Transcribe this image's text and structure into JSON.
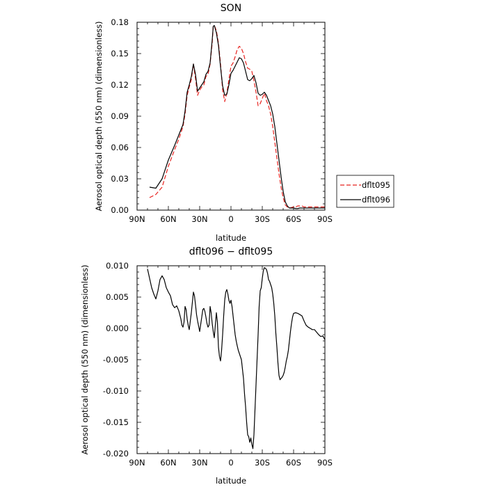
{
  "chart_data": [
    {
      "type": "line",
      "title": "SON",
      "xlabel": "latitude",
      "ylabel": "Aerosol optical depth (550 nm) (dimensionless)",
      "xlim": [
        90,
        -90
      ],
      "ylim": [
        0.0,
        0.18
      ],
      "x_ticks": [
        90,
        60,
        30,
        0,
        -30,
        -60,
        -90
      ],
      "x_tick_labels": [
        "90N",
        "60N",
        "30N",
        "0",
        "30S",
        "60S",
        "90S"
      ],
      "y_ticks": [
        0.0,
        0.03,
        0.06,
        0.09,
        0.12,
        0.15,
        0.18
      ],
      "y_tick_labels": [
        "0.00",
        "0.03",
        "0.06",
        "0.09",
        "0.12",
        "0.15",
        "0.18"
      ],
      "grid": false,
      "legend_position": "outside-right",
      "series": [
        {
          "name": "dflt095",
          "color": "#e8221e",
          "dash": "dashed",
          "x": [
            78,
            72,
            66,
            60,
            54,
            50,
            46,
            44,
            42,
            40,
            38,
            36,
            34,
            32,
            30,
            28,
            26,
            24,
            22,
            20,
            18,
            17,
            16,
            14,
            12,
            10,
            8,
            6,
            4,
            2,
            0,
            -2,
            -4,
            -6,
            -8,
            -10,
            -12,
            -14,
            -16,
            -18,
            -20,
            -22,
            -24,
            -26,
            -28,
            -30,
            -32,
            -34,
            -36,
            -38,
            -40,
            -42,
            -44,
            -46,
            -48,
            -50,
            -52,
            -54,
            -56,
            -58,
            -60,
            -62,
            -64,
            -66,
            -68,
            -70,
            -72,
            -74,
            -76,
            -78,
            -80,
            -82,
            -84,
            -86,
            -88,
            -90
          ],
          "y": [
            0.012,
            0.015,
            0.022,
            0.042,
            0.058,
            0.068,
            0.08,
            0.092,
            0.11,
            0.118,
            0.125,
            0.14,
            0.126,
            0.11,
            0.115,
            0.118,
            0.12,
            0.128,
            0.13,
            0.14,
            0.16,
            0.176,
            0.177,
            0.172,
            0.16,
            0.14,
            0.115,
            0.104,
            0.112,
            0.125,
            0.138,
            0.141,
            0.147,
            0.154,
            0.157,
            0.155,
            0.15,
            0.142,
            0.136,
            0.135,
            0.133,
            0.124,
            0.113,
            0.1,
            0.102,
            0.107,
            0.112,
            0.105,
            0.1,
            0.092,
            0.08,
            0.065,
            0.05,
            0.035,
            0.022,
            0.012,
            0.005,
            0.003,
            0.002,
            0.0025,
            0.003,
            0.003,
            0.004,
            0.004,
            0.004,
            0.003,
            0.003,
            0.003,
            0.003,
            0.003,
            0.003,
            0.003,
            0.003,
            0.003,
            0.003,
            0.003
          ]
        },
        {
          "name": "dflt096",
          "color": "#000000",
          "dash": "solid",
          "x": [
            78,
            72,
            66,
            60,
            54,
            50,
            46,
            44,
            42,
            40,
            38,
            36,
            34,
            32,
            30,
            28,
            26,
            24,
            22,
            20,
            18,
            17,
            16,
            14,
            12,
            10,
            8,
            6,
            4,
            2,
            0,
            -2,
            -4,
            -6,
            -8,
            -10,
            -12,
            -14,
            -16,
            -18,
            -20,
            -22,
            -24,
            -26,
            -28,
            -30,
            -32,
            -34,
            -36,
            -38,
            -40,
            -42,
            -44,
            -46,
            -48,
            -50,
            -52,
            -54,
            -56,
            -58,
            -60,
            -62,
            -64,
            -66,
            -68,
            -70,
            -72,
            -74,
            -76,
            -78,
            -80,
            -82,
            -84,
            -86,
            -88,
            -90
          ],
          "y": [
            0.022,
            0.021,
            0.03,
            0.048,
            0.062,
            0.072,
            0.082,
            0.095,
            0.113,
            0.12,
            0.128,
            0.14,
            0.13,
            0.114,
            0.117,
            0.12,
            0.123,
            0.13,
            0.133,
            0.141,
            0.163,
            0.176,
            0.177,
            0.17,
            0.158,
            0.137,
            0.119,
            0.11,
            0.111,
            0.12,
            0.131,
            0.134,
            0.138,
            0.142,
            0.146,
            0.145,
            0.141,
            0.133,
            0.125,
            0.124,
            0.126,
            0.129,
            0.122,
            0.112,
            0.11,
            0.111,
            0.113,
            0.11,
            0.105,
            0.1,
            0.092,
            0.08,
            0.064,
            0.048,
            0.032,
            0.018,
            0.008,
            0.004,
            0.002,
            0.002,
            0.002,
            0.0015,
            0.0015,
            0.002,
            0.002,
            0.002,
            0.002,
            0.002,
            0.002,
            0.002,
            0.002,
            0.002,
            0.002,
            0.002,
            0.002,
            0.002
          ]
        }
      ]
    },
    {
      "type": "line",
      "title": "dflt096 − dflt095",
      "xlabel": "latitude",
      "ylabel": "Aerosol optical depth (550 nm) (dimensionless)",
      "xlim": [
        90,
        -90
      ],
      "ylim": [
        -0.02,
        0.01
      ],
      "x_ticks": [
        90,
        60,
        30,
        0,
        -30,
        -60,
        -90
      ],
      "x_tick_labels": [
        "90N",
        "60N",
        "30N",
        "0",
        "30S",
        "60S",
        "90S"
      ],
      "y_ticks": [
        -0.02,
        -0.015,
        -0.01,
        -0.005,
        0.0,
        0.005,
        0.01
      ],
      "y_tick_labels": [
        "-0.020",
        "-0.015",
        "-0.010",
        "-0.005",
        "0.000",
        "0.005",
        "0.010"
      ],
      "grid": false,
      "series": [
        {
          "name": "",
          "color": "#000000",
          "dash": "solid",
          "x": [
            80,
            78,
            76,
            74,
            72,
            70,
            68,
            66,
            64,
            62,
            60,
            58,
            56,
            54,
            52,
            50,
            48,
            47,
            46,
            45,
            44,
            43,
            42,
            41,
            40,
            38,
            36,
            35,
            34,
            33,
            32,
            30,
            28,
            27,
            26,
            25,
            24,
            23,
            22,
            21,
            20,
            19,
            18,
            17,
            16,
            15,
            14,
            13,
            12,
            11,
            10,
            9,
            8,
            7,
            6,
            5,
            4,
            3,
            2,
            1,
            0,
            -1,
            -2,
            -3,
            -4,
            -5,
            -6,
            -7,
            -8,
            -9,
            -10,
            -11,
            -12,
            -13,
            -14,
            -15,
            -16,
            -17,
            -18,
            -19,
            -20,
            -21,
            -22,
            -23,
            -24,
            -25,
            -26,
            -27,
            -28,
            -29,
            -30,
            -31,
            -32,
            -33,
            -34,
            -35,
            -36,
            -37,
            -38,
            -39,
            -40,
            -41,
            -42,
            -43,
            -44,
            -45,
            -46,
            -47,
            -48,
            -49,
            -50,
            -51,
            -52,
            -53,
            -54,
            -55,
            -56,
            -57,
            -58,
            -59,
            -60,
            -62,
            -64,
            -66,
            -68,
            -70,
            -72,
            -74,
            -76,
            -78,
            -80,
            -82,
            -84,
            -86,
            -88,
            -90
          ],
          "y": [
            0.0095,
            0.008,
            0.0065,
            0.0055,
            0.0047,
            0.006,
            0.0078,
            0.0084,
            0.0078,
            0.0065,
            0.0058,
            0.0052,
            0.0038,
            0.0033,
            0.0036,
            0.0028,
            0.0015,
            0.0005,
            0.0002,
            0.001,
            0.0035,
            0.003,
            0.0015,
            0.0005,
            -0.0002,
            0.0025,
            0.0058,
            0.0052,
            0.0038,
            0.0022,
            0.0012,
            -0.0005,
            0.0018,
            0.003,
            0.0032,
            0.0027,
            0.0018,
            0.0008,
            0.0002,
            0.0005,
            0.0035,
            0.0025,
            0.0008,
            -0.0005,
            -0.0015,
            0.0005,
            0.0025,
            0.001,
            -0.003,
            -0.0045,
            -0.0052,
            -0.0035,
            -0.001,
            0.002,
            0.0045,
            0.0058,
            0.0062,
            0.0055,
            0.0045,
            0.004,
            0.0045,
            0.0035,
            0.002,
            0.0005,
            -0.001,
            -0.002,
            -0.0028,
            -0.0035,
            -0.004,
            -0.0045,
            -0.005,
            -0.0065,
            -0.008,
            -0.0105,
            -0.0125,
            -0.015,
            -0.017,
            -0.0173,
            -0.0182,
            -0.0175,
            -0.0185,
            -0.0192,
            -0.017,
            -0.013,
            -0.009,
            -0.005,
            -0.001,
            0.0035,
            0.006,
            0.0065,
            0.008,
            0.0092,
            0.0097,
            0.0096,
            0.0094,
            0.0088,
            0.0078,
            0.0075,
            0.007,
            0.0065,
            0.0055,
            0.004,
            0.002,
            -0.0008,
            -0.003,
            -0.0055,
            -0.0075,
            -0.0082,
            -0.008,
            -0.0078,
            -0.0075,
            -0.007,
            -0.0062,
            -0.0052,
            -0.0045,
            -0.0035,
            -0.002,
            -0.0005,
            0.0008,
            0.0018,
            0.0024,
            0.0025,
            0.0024,
            0.0022,
            0.002,
            0.0012,
            0.0005,
            0.0002,
            0.0,
            -0.0002,
            -0.0002,
            -0.0006,
            -0.001,
            -0.0013,
            -0.0012,
            -0.0018
          ]
        }
      ]
    }
  ]
}
